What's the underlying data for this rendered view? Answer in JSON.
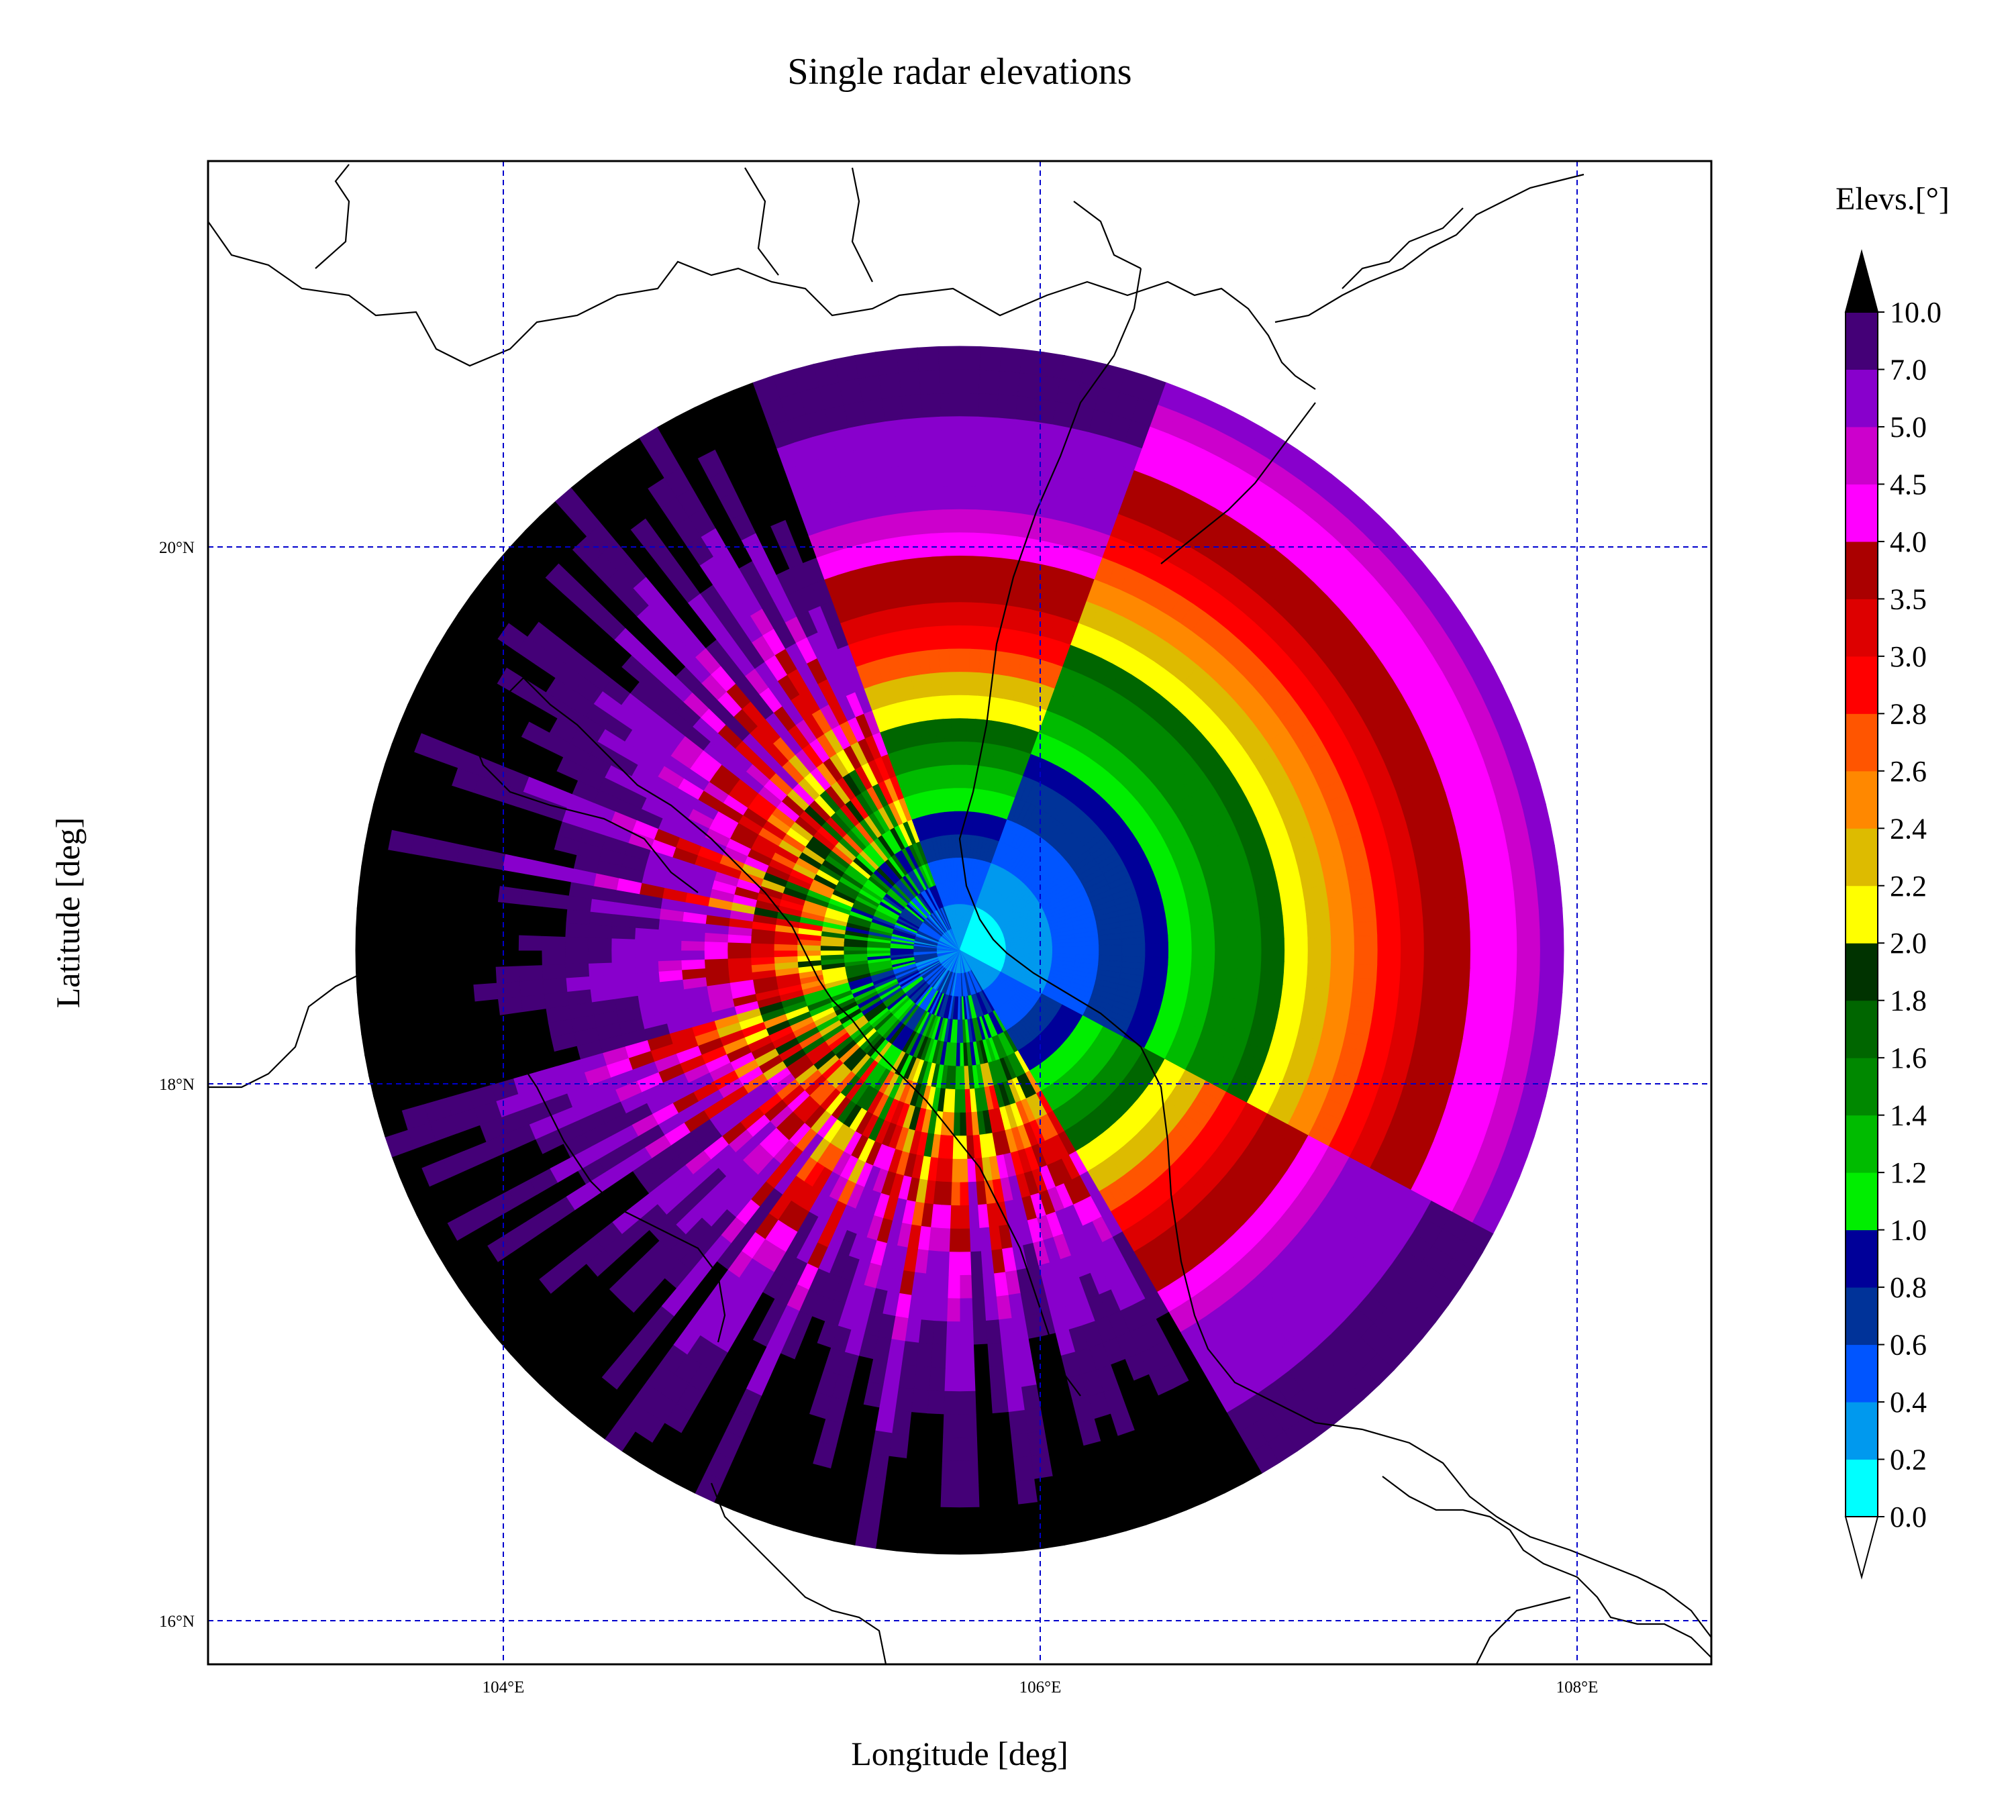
{
  "title": "Single radar elevations",
  "xlabel": "Longitude [deg]",
  "ylabel": "Latitude [deg]",
  "x_ticks": [
    "104°E",
    "106°E",
    "108°E"
  ],
  "y_ticks": [
    "20°N",
    "18°N",
    "16°N"
  ],
  "colorbar": {
    "title": "Elevs.[°]",
    "levels": [
      "0.0",
      "0.2",
      "0.4",
      "0.6",
      "0.8",
      "1.0",
      "1.2",
      "1.4",
      "1.6",
      "1.8",
      "2.0",
      "2.2",
      "2.4",
      "2.6",
      "2.8",
      "3.0",
      "3.5",
      "4.0",
      "4.5",
      "5.0",
      "7.0",
      "10.0"
    ],
    "colors": [
      "#00ffff",
      "#0099ee",
      "#0055ff",
      "#003399",
      "#000099",
      "#00ee00",
      "#00bb00",
      "#008800",
      "#006600",
      "#003300",
      "#ffff00",
      "#ddbb00",
      "#ff8800",
      "#ff5500",
      "#ff0000",
      "#dd0000",
      "#aa0000",
      "#ff00ff",
      "#cc00cc",
      "#8800cc",
      "#440077"
    ],
    "over_color": "#000000",
    "under_color": "#ffffff",
    "extend": "both"
  },
  "chart_data": {
    "type": "heatmap",
    "title": "Single radar elevations",
    "xlabel": "Longitude [deg]",
    "ylabel": "Latitude [deg]",
    "projection": "PlateCarree",
    "xlim": [
      102.9,
      108.5
    ],
    "ylim": [
      15.8,
      21.8
    ],
    "x_ticks": [
      104,
      106,
      108
    ],
    "y_ticks": [
      16,
      18,
      20
    ],
    "grid": true,
    "radar_center": {
      "lon": 105.7,
      "lat": 18.65
    },
    "radar_range_deg": 2.25,
    "colorbar_label": "Elevs.[°]",
    "colorbar_levels": [
      0.0,
      0.2,
      0.4,
      0.6,
      0.8,
      1.0,
      1.2,
      1.4,
      1.6,
      1.8,
      2.0,
      2.2,
      2.4,
      2.6,
      2.8,
      3.0,
      3.5,
      4.0,
      4.5,
      5.0,
      7.0,
      10.0
    ]
  }
}
